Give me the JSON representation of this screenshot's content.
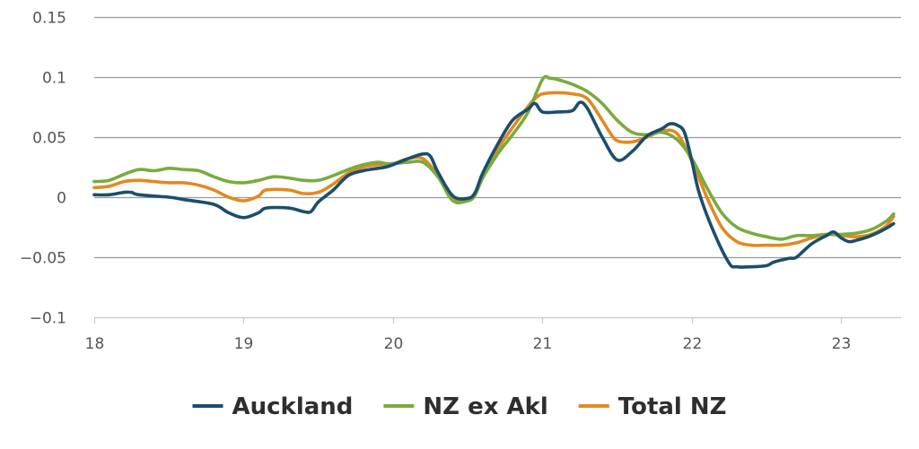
{
  "chart_data": {
    "type": "line",
    "title": "",
    "xlabel": "",
    "ylabel": "",
    "xlim": [
      18,
      23.4
    ],
    "ylim": [
      -0.1,
      0.15
    ],
    "grid": true,
    "legend_position": "bottom",
    "x_ticks": [
      {
        "value": 18,
        "label": "18"
      },
      {
        "value": 19,
        "label": "19"
      },
      {
        "value": 20,
        "label": "20"
      },
      {
        "value": 21,
        "label": "21"
      },
      {
        "value": 22,
        "label": "22"
      },
      {
        "value": 23,
        "label": "23"
      }
    ],
    "y_ticks": [
      {
        "value": 0.15,
        "label": "0.15"
      },
      {
        "value": 0.1,
        "label": "0.1"
      },
      {
        "value": 0.05,
        "label": "0.05"
      },
      {
        "value": 0,
        "label": "0"
      },
      {
        "value": -0.05,
        "label": "−0.05"
      },
      {
        "value": -0.1,
        "label": "−0.1"
      }
    ],
    "series": [
      {
        "name": "Auckland",
        "color": "#1a4e6e",
        "points": [
          [
            18.0,
            0.002
          ],
          [
            18.1,
            0.002
          ],
          [
            18.2,
            0.004
          ],
          [
            18.25,
            0.004
          ],
          [
            18.3,
            0.002
          ],
          [
            18.5,
            0.0
          ],
          [
            18.6,
            -0.002
          ],
          [
            18.8,
            -0.006
          ],
          [
            18.9,
            -0.013
          ],
          [
            19.0,
            -0.017
          ],
          [
            19.1,
            -0.013
          ],
          [
            19.15,
            -0.009
          ],
          [
            19.3,
            -0.009
          ],
          [
            19.4,
            -0.012
          ],
          [
            19.45,
            -0.012
          ],
          [
            19.5,
            -0.004
          ],
          [
            19.6,
            0.006
          ],
          [
            19.7,
            0.018
          ],
          [
            19.8,
            0.022
          ],
          [
            19.9,
            0.024
          ],
          [
            19.95,
            0.025
          ],
          [
            20.0,
            0.027
          ],
          [
            20.1,
            0.032
          ],
          [
            20.2,
            0.036
          ],
          [
            20.25,
            0.034
          ],
          [
            20.3,
            0.021
          ],
          [
            20.4,
            0.001
          ],
          [
            20.5,
            -0.001
          ],
          [
            20.55,
            0.004
          ],
          [
            20.6,
            0.02
          ],
          [
            20.7,
            0.044
          ],
          [
            20.8,
            0.064
          ],
          [
            20.9,
            0.073
          ],
          [
            20.95,
            0.078
          ],
          [
            21.0,
            0.071
          ],
          [
            21.1,
            0.071
          ],
          [
            21.2,
            0.072
          ],
          [
            21.25,
            0.079
          ],
          [
            21.3,
            0.074
          ],
          [
            21.4,
            0.05
          ],
          [
            21.5,
            0.031
          ],
          [
            21.6,
            0.038
          ],
          [
            21.7,
            0.051
          ],
          [
            21.8,
            0.057
          ],
          [
            21.85,
            0.061
          ],
          [
            21.9,
            0.06
          ],
          [
            21.95,
            0.054
          ],
          [
            22.0,
            0.03
          ],
          [
            22.05,
            0.003
          ],
          [
            22.15,
            -0.03
          ],
          [
            22.25,
            -0.055
          ],
          [
            22.3,
            -0.058
          ],
          [
            22.4,
            -0.058
          ],
          [
            22.5,
            -0.057
          ],
          [
            22.55,
            -0.054
          ],
          [
            22.65,
            -0.051
          ],
          [
            22.7,
            -0.05
          ],
          [
            22.8,
            -0.039
          ],
          [
            22.9,
            -0.032
          ],
          [
            22.95,
            -0.029
          ],
          [
            23.0,
            -0.034
          ],
          [
            23.05,
            -0.037
          ],
          [
            23.1,
            -0.036
          ],
          [
            23.2,
            -0.032
          ],
          [
            23.3,
            -0.026
          ],
          [
            23.35,
            -0.022
          ]
        ]
      },
      {
        "name": "NZ ex Akl",
        "color": "#7aab3d",
        "points": [
          [
            18.0,
            0.013
          ],
          [
            18.1,
            0.014
          ],
          [
            18.2,
            0.019
          ],
          [
            18.3,
            0.023
          ],
          [
            18.4,
            0.022
          ],
          [
            18.5,
            0.024
          ],
          [
            18.6,
            0.023
          ],
          [
            18.7,
            0.022
          ],
          [
            18.8,
            0.017
          ],
          [
            18.9,
            0.013
          ],
          [
            19.0,
            0.012
          ],
          [
            19.1,
            0.014
          ],
          [
            19.2,
            0.017
          ],
          [
            19.3,
            0.016
          ],
          [
            19.4,
            0.014
          ],
          [
            19.5,
            0.014
          ],
          [
            19.6,
            0.018
          ],
          [
            19.7,
            0.023
          ],
          [
            19.8,
            0.027
          ],
          [
            19.9,
            0.029
          ],
          [
            19.95,
            0.028
          ],
          [
            20.0,
            0.028
          ],
          [
            20.1,
            0.029
          ],
          [
            20.2,
            0.029
          ],
          [
            20.3,
            0.017
          ],
          [
            20.4,
            -0.003
          ],
          [
            20.5,
            -0.003
          ],
          [
            20.55,
            0.002
          ],
          [
            20.6,
            0.016
          ],
          [
            20.7,
            0.036
          ],
          [
            20.8,
            0.052
          ],
          [
            20.9,
            0.07
          ],
          [
            21.0,
            0.098
          ],
          [
            21.05,
            0.099
          ],
          [
            21.1,
            0.098
          ],
          [
            21.2,
            0.094
          ],
          [
            21.3,
            0.088
          ],
          [
            21.4,
            0.078
          ],
          [
            21.5,
            0.064
          ],
          [
            21.6,
            0.054
          ],
          [
            21.7,
            0.052
          ],
          [
            21.8,
            0.054
          ],
          [
            21.9,
            0.048
          ],
          [
            22.0,
            0.032
          ],
          [
            22.1,
            0.008
          ],
          [
            22.2,
            -0.013
          ],
          [
            22.3,
            -0.025
          ],
          [
            22.4,
            -0.03
          ],
          [
            22.5,
            -0.033
          ],
          [
            22.6,
            -0.035
          ],
          [
            22.7,
            -0.032
          ],
          [
            22.8,
            -0.032
          ],
          [
            22.9,
            -0.031
          ],
          [
            23.0,
            -0.031
          ],
          [
            23.1,
            -0.03
          ],
          [
            23.2,
            -0.027
          ],
          [
            23.3,
            -0.02
          ],
          [
            23.35,
            -0.014
          ]
        ]
      },
      {
        "name": "Total NZ",
        "color": "#e3891f",
        "points": [
          [
            18.0,
            0.008
          ],
          [
            18.1,
            0.009
          ],
          [
            18.2,
            0.013
          ],
          [
            18.3,
            0.014
          ],
          [
            18.4,
            0.013
          ],
          [
            18.5,
            0.012
          ],
          [
            18.6,
            0.012
          ],
          [
            18.7,
            0.01
          ],
          [
            18.8,
            0.006
          ],
          [
            18.9,
            0.0
          ],
          [
            19.0,
            -0.003
          ],
          [
            19.1,
            0.001
          ],
          [
            19.15,
            0.006
          ],
          [
            19.3,
            0.006
          ],
          [
            19.4,
            0.003
          ],
          [
            19.5,
            0.004
          ],
          [
            19.6,
            0.011
          ],
          [
            19.7,
            0.02
          ],
          [
            19.8,
            0.025
          ],
          [
            19.9,
            0.027
          ],
          [
            20.0,
            0.028
          ],
          [
            20.1,
            0.032
          ],
          [
            20.2,
            0.032
          ],
          [
            20.3,
            0.018
          ],
          [
            20.4,
            -0.002
          ],
          [
            20.5,
            -0.003
          ],
          [
            20.55,
            0.002
          ],
          [
            20.6,
            0.018
          ],
          [
            20.7,
            0.04
          ],
          [
            20.8,
            0.058
          ],
          [
            20.9,
            0.075
          ],
          [
            20.95,
            0.082
          ],
          [
            21.0,
            0.086
          ],
          [
            21.1,
            0.087
          ],
          [
            21.2,
            0.086
          ],
          [
            21.3,
            0.082
          ],
          [
            21.4,
            0.064
          ],
          [
            21.45,
            0.054
          ],
          [
            21.5,
            0.047
          ],
          [
            21.6,
            0.046
          ],
          [
            21.7,
            0.05
          ],
          [
            21.8,
            0.055
          ],
          [
            21.9,
            0.053
          ],
          [
            22.0,
            0.03
          ],
          [
            22.1,
            0.0
          ],
          [
            22.2,
            -0.025
          ],
          [
            22.3,
            -0.037
          ],
          [
            22.4,
            -0.04
          ],
          [
            22.5,
            -0.04
          ],
          [
            22.6,
            -0.04
          ],
          [
            22.7,
            -0.038
          ],
          [
            22.8,
            -0.034
          ],
          [
            22.9,
            -0.031
          ],
          [
            23.0,
            -0.032
          ],
          [
            23.1,
            -0.033
          ],
          [
            23.2,
            -0.031
          ],
          [
            23.3,
            -0.024
          ],
          [
            23.35,
            -0.016
          ]
        ]
      }
    ]
  }
}
